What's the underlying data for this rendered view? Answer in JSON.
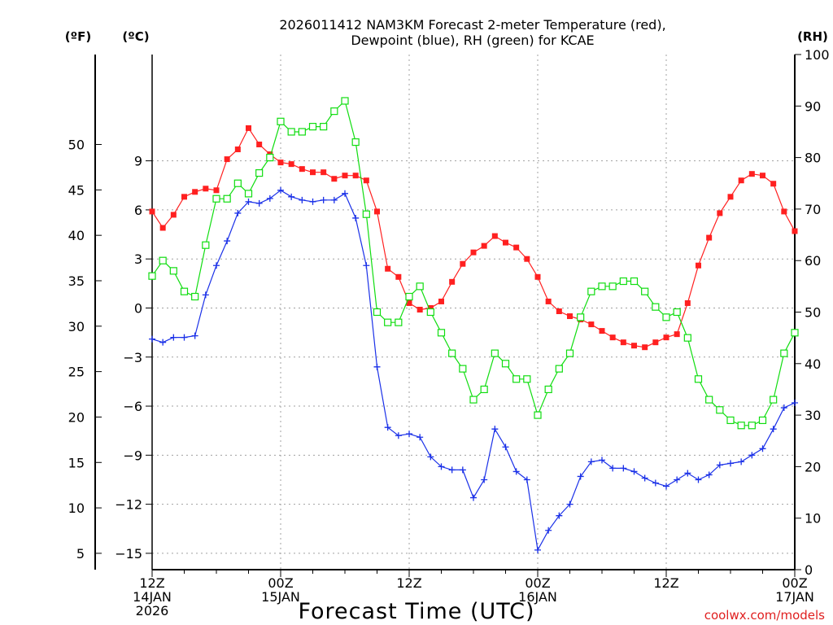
{
  "chart_data": {
    "type": "line",
    "title_line1": "2026011412 NAM3KM Forecast 2-meter Temperature (red),",
    "title_line2": "Dewpoint (blue), RH (green) for KCAE",
    "xlabel": "Forecast Time (UTC)",
    "watermark": "coolwx.com/models",
    "unit_labels": {
      "fahrenheit": "(ºF)",
      "celsius": "(ºC)",
      "rh": "(RH)"
    },
    "xlim": [
      0,
      60
    ],
    "ylim_celsius": [
      -16,
      15.5
    ],
    "ylim_rh": [
      0,
      100
    ],
    "x_ticks": [
      {
        "x": 0,
        "lines": [
          "12Z",
          "14JAN",
          "2026"
        ]
      },
      {
        "x": 12,
        "lines": [
          "00Z",
          "15JAN"
        ]
      },
      {
        "x": 24,
        "lines": [
          "12Z"
        ]
      },
      {
        "x": 36,
        "lines": [
          "00Z",
          "16JAN"
        ]
      },
      {
        "x": 48,
        "lines": [
          "12Z"
        ]
      },
      {
        "x": 60,
        "lines": [
          "00Z",
          "17JAN"
        ]
      }
    ],
    "celsius_ticks": [
      {
        "value": 9,
        "label": "9"
      },
      {
        "value": 6,
        "label": "6"
      },
      {
        "value": 3,
        "label": "3"
      },
      {
        "value": 0,
        "label": "0"
      },
      {
        "value": -3,
        "label": "−3"
      },
      {
        "value": -6,
        "label": "−6"
      },
      {
        "value": -9,
        "label": "−9"
      },
      {
        "value": -12,
        "label": "−12"
      },
      {
        "value": -15,
        "label": "−15"
      }
    ],
    "fahrenheit_ticks": [
      {
        "value": 50,
        "label": "50"
      },
      {
        "value": 45,
        "label": "45"
      },
      {
        "value": 40,
        "label": "40"
      },
      {
        "value": 35,
        "label": "35"
      },
      {
        "value": 30,
        "label": "30"
      },
      {
        "value": 25,
        "label": "25"
      },
      {
        "value": 20,
        "label": "20"
      },
      {
        "value": 15,
        "label": "15"
      },
      {
        "value": 10,
        "label": "10"
      },
      {
        "value": 5,
        "label": "5"
      }
    ],
    "rh_ticks": [
      {
        "value": 100,
        "label": "100"
      },
      {
        "value": 90,
        "label": "90"
      },
      {
        "value": 80,
        "label": "80"
      },
      {
        "value": 70,
        "label": "70"
      },
      {
        "value": 60,
        "label": "60"
      },
      {
        "value": 50,
        "label": "50"
      },
      {
        "value": 40,
        "label": "40"
      },
      {
        "value": 30,
        "label": "30"
      },
      {
        "value": 20,
        "label": "20"
      },
      {
        "value": 10,
        "label": "10"
      },
      {
        "value": 0,
        "label": "0"
      }
    ],
    "series": [
      {
        "name": "Temperature",
        "unit": "C",
        "color": "#ff2020",
        "marker": "filled-square",
        "x": [
          0,
          1,
          2,
          3,
          4,
          5,
          6,
          7,
          8,
          9,
          10,
          11,
          12,
          13,
          14,
          15,
          16,
          17,
          18,
          19,
          20,
          21,
          22,
          23,
          24,
          25,
          26,
          27,
          28,
          29,
          30,
          31,
          32,
          33,
          34,
          35,
          36,
          37,
          38,
          39,
          40,
          41,
          42,
          43,
          44,
          45,
          46,
          47,
          48,
          49,
          50,
          51,
          52,
          53,
          54,
          55,
          56,
          57,
          58,
          59,
          60
        ],
        "values": [
          5.9,
          4.9,
          5.7,
          6.8,
          7.1,
          7.3,
          7.2,
          9.1,
          9.7,
          11.0,
          10.0,
          9.4,
          8.9,
          8.8,
          8.5,
          8.3,
          8.3,
          7.9,
          8.1,
          8.1,
          7.8,
          5.9,
          2.4,
          1.9,
          0.3,
          -0.1,
          0.0,
          0.4,
          1.6,
          2.7,
          3.4,
          3.8,
          4.4,
          4.0,
          3.7,
          3.0,
          1.9,
          0.4,
          -0.2,
          -0.5,
          -0.7,
          -1.0,
          -1.4,
          -1.8,
          -2.1,
          -2.3,
          -2.4,
          -2.1,
          -1.8,
          -1.6,
          0.3,
          2.6,
          4.3,
          5.8,
          6.8,
          7.8,
          8.2,
          8.1,
          7.6,
          5.9,
          4.7
        ]
      },
      {
        "name": "Dewpoint",
        "unit": "C",
        "color": "#1a30e8",
        "marker": "plus",
        "x": [
          0,
          1,
          2,
          3,
          4,
          5,
          6,
          7,
          8,
          9,
          10,
          11,
          12,
          13,
          14,
          15,
          16,
          17,
          18,
          19,
          20,
          21,
          22,
          23,
          24,
          25,
          26,
          27,
          28,
          29,
          30,
          31,
          32,
          33,
          34,
          35,
          36,
          37,
          38,
          39,
          40,
          41,
          42,
          43,
          44,
          45,
          46,
          47,
          48,
          49,
          50,
          51,
          52,
          53,
          54,
          55,
          56,
          57,
          58,
          59,
          60
        ],
        "values": [
          -1.9,
          -2.1,
          -1.8,
          -1.8,
          -1.7,
          0.8,
          2.6,
          4.1,
          5.8,
          6.5,
          6.4,
          6.7,
          7.2,
          6.8,
          6.6,
          6.5,
          6.6,
          6.6,
          7.0,
          5.5,
          2.6,
          -3.6,
          -7.3,
          -7.8,
          -7.7,
          -7.9,
          -9.1,
          -9.7,
          -9.9,
          -9.9,
          -11.6,
          -10.5,
          -7.4,
          -8.5,
          -10.0,
          -10.5,
          -14.8,
          -13.6,
          -12.7,
          -12.0,
          -10.3,
          -9.4,
          -9.3,
          -9.8,
          -9.8,
          -10.0,
          -10.4,
          -10.7,
          -10.9,
          -10.5,
          -10.1,
          -10.5,
          -10.2,
          -9.6,
          -9.5,
          -9.4,
          -9.0,
          -8.6,
          -7.4,
          -6.1,
          -5.8
        ]
      },
      {
        "name": "RH",
        "unit": "%",
        "color": "#10dd10",
        "marker": "open-square",
        "x": [
          0,
          1,
          2,
          3,
          4,
          5,
          6,
          7,
          8,
          9,
          10,
          11,
          12,
          13,
          14,
          15,
          16,
          17,
          18,
          19,
          20,
          21,
          22,
          23,
          24,
          25,
          26,
          27,
          28,
          29,
          30,
          31,
          32,
          33,
          34,
          35,
          36,
          37,
          38,
          39,
          40,
          41,
          42,
          43,
          44,
          45,
          46,
          47,
          48,
          49,
          50,
          51,
          52,
          53,
          54,
          55,
          56,
          57,
          58,
          59,
          60
        ],
        "values": [
          57,
          60,
          58,
          54,
          53,
          63,
          72,
          72,
          75,
          73,
          77,
          80,
          87,
          85,
          85,
          86,
          86,
          89,
          91,
          83,
          69,
          50,
          48,
          48,
          53,
          55,
          50,
          46,
          42,
          39,
          33,
          35,
          42,
          40,
          37,
          37,
          30,
          35,
          39,
          42,
          49,
          54,
          55,
          55,
          56,
          56,
          54,
          51,
          49,
          50,
          45,
          37,
          33,
          31,
          29,
          28,
          28,
          29,
          33,
          42,
          46
        ]
      }
    ]
  }
}
